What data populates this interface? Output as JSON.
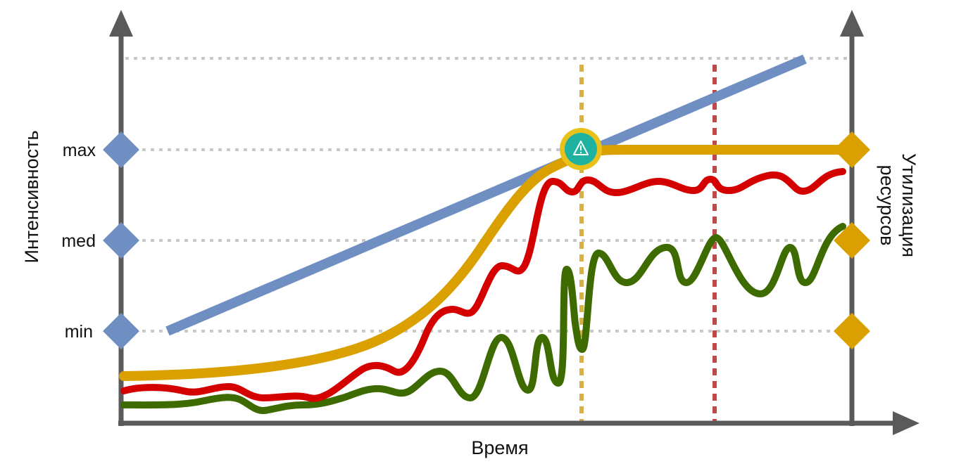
{
  "axes": {
    "x_title": "Время",
    "y_left_title": "Интенсивность",
    "y_right_title_line1": "Утилизация",
    "y_right_title_line2": "ресурсов"
  },
  "levels": [
    {
      "id": "max",
      "label": "max"
    },
    {
      "id": "med",
      "label": "med"
    },
    {
      "id": "min",
      "label": "min"
    }
  ],
  "markers": {
    "alert_icon": "warning-triangle-icon"
  },
  "colors": {
    "load_line": "#6f8fc3",
    "utilization_curve": "#d9a000",
    "red_series": "#d40000",
    "green_series": "#3d6b00",
    "axis": "#5a5a5a",
    "grid": "#c8c8c8",
    "level_marker_left": "#6f8fc3",
    "level_marker_right": "#d9a000",
    "alert_fill": "#1fb2a0",
    "alert_ring": "#e8c21a",
    "vline_yellow": "#d8b048",
    "vline_red": "#c04848"
  }
}
